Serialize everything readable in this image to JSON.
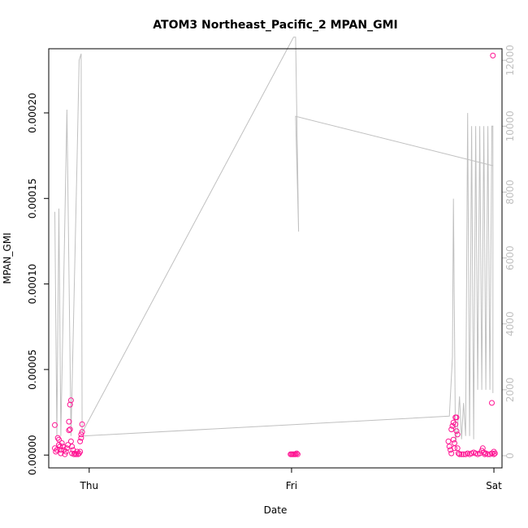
{
  "chart_data": {
    "type": "scatter",
    "title": "ATOM3 Northeast_Pacific_2 MPAN_GMI",
    "xlabel": "Date",
    "ylabel": "MPAN_GMI",
    "x_ticks": [
      "Thu",
      "Fri",
      "Sat"
    ],
    "x_range_days": [
      -0.2,
      2.04
    ],
    "y_ticks": [
      "0.00000",
      "0.00005",
      "0.00010",
      "0.00015",
      "0.00020"
    ],
    "y_tick_values": [
      0.0,
      5e-05,
      0.0001,
      0.00015,
      0.0002
    ],
    "ylim": [
      -7.5e-06,
      0.0002375
    ],
    "y2_ticks": [
      "0",
      "2000",
      "4000",
      "6000",
      "8000",
      "10000",
      "12000"
    ],
    "y2_tick_values": [
      0,
      2000,
      4000,
      6000,
      8000,
      10000,
      12000
    ],
    "y2lim": [
      -370,
      12350
    ],
    "grid": false,
    "colors": {
      "points": "#ff1493",
      "altitude_line": "#c0c0c0",
      "axes": "#000000"
    },
    "series": [
      {
        "type": "scatter",
        "points": [
          [
            -0.17,
            1.75e-05
          ],
          [
            -0.17,
            4e-06
          ],
          [
            -0.165,
            2e-06
          ],
          [
            -0.16,
            3e-06
          ],
          [
            -0.155,
            1e-05
          ],
          [
            -0.15,
            9e-06
          ],
          [
            -0.15,
            6e-06
          ],
          [
            -0.145,
            5e-06
          ],
          [
            -0.14,
            3e-06
          ],
          [
            -0.14,
            1e-06
          ],
          [
            -0.135,
            7e-06
          ],
          [
            -0.13,
            5e-06
          ],
          [
            -0.125,
            3e-06
          ],
          [
            -0.12,
            5e-07
          ],
          [
            -0.115,
            2e-06
          ],
          [
            -0.11,
            4e-06
          ],
          [
            -0.105,
            6e-06
          ],
          [
            -0.1,
            1.45e-05
          ],
          [
            -0.1,
            1.95e-05
          ],
          [
            -0.095,
            1.5e-05
          ],
          [
            -0.095,
            2.95e-05
          ],
          [
            -0.09,
            3.2e-05
          ],
          [
            -0.09,
            8e-06
          ],
          [
            -0.085,
            5e-06
          ],
          [
            -0.085,
            1e-06
          ],
          [
            -0.08,
            3e-06
          ],
          [
            -0.075,
            5e-07
          ],
          [
            -0.07,
            1e-06
          ],
          [
            -0.065,
            5e-07
          ],
          [
            -0.06,
            2e-06
          ],
          [
            -0.055,
            5e-07
          ],
          [
            -0.05,
            1e-06
          ],
          [
            -0.045,
            2e-06
          ],
          [
            -0.045,
            8e-06
          ],
          [
            -0.04,
            1e-05
          ],
          [
            -0.04,
            1.2e-05
          ],
          [
            -0.035,
            1.35e-05
          ],
          [
            -0.035,
            1.8e-05
          ],
          [
            0.995,
            5e-07
          ],
          [
            1.0,
            5e-07
          ],
          [
            1.005,
            5e-07
          ],
          [
            1.01,
            5e-07
          ],
          [
            1.015,
            5e-07
          ],
          [
            1.02,
            5e-07
          ],
          [
            1.025,
            1e-06
          ],
          [
            1.03,
            5e-07
          ],
          [
            1.775,
            8e-06
          ],
          [
            1.78,
            5e-06
          ],
          [
            1.785,
            3e-06
          ],
          [
            1.79,
            1e-06
          ],
          [
            1.79,
            1.5e-05
          ],
          [
            1.795,
            1.7e-05
          ],
          [
            1.8,
            1.9e-05
          ],
          [
            1.8,
            9e-06
          ],
          [
            1.805,
            7e-06
          ],
          [
            1.805,
            4e-06
          ],
          [
            1.81,
            1.8e-05
          ],
          [
            1.81,
            2.2e-05
          ],
          [
            1.815,
            2.2e-05
          ],
          [
            1.815,
            1.4e-05
          ],
          [
            1.82,
            1.2e-05
          ],
          [
            1.82,
            4e-06
          ],
          [
            1.825,
            1e-06
          ],
          [
            1.83,
            5e-07
          ],
          [
            1.84,
            5e-07
          ],
          [
            1.85,
            5e-07
          ],
          [
            1.86,
            5e-07
          ],
          [
            1.87,
            1e-06
          ],
          [
            1.88,
            5e-07
          ],
          [
            1.89,
            1e-06
          ],
          [
            1.9,
            1.5e-06
          ],
          [
            1.91,
            1e-06
          ],
          [
            1.92,
            5e-07
          ],
          [
            1.93,
            1e-06
          ],
          [
            1.94,
            2.5e-06
          ],
          [
            1.945,
            4e-06
          ],
          [
            1.95,
            1.5e-06
          ],
          [
            1.955,
            5e-07
          ],
          [
            1.96,
            1e-06
          ],
          [
            1.97,
            5e-07
          ],
          [
            1.98,
            5e-07
          ],
          [
            1.99,
            1e-06
          ],
          [
            1.99,
            3.05e-05
          ],
          [
            1.995,
            0.0002335
          ],
          [
            2.0,
            2e-06
          ],
          [
            2.0,
            5e-07
          ],
          [
            2.005,
            1e-06
          ]
        ]
      },
      {
        "type": "line",
        "name": "altitude",
        "axis": "right",
        "points": [
          [
            -0.17,
            7400
          ],
          [
            -0.16,
            600
          ],
          [
            -0.15,
            7500
          ],
          [
            -0.14,
            600
          ],
          [
            -0.11,
            10500
          ],
          [
            -0.09,
            600
          ],
          [
            -0.06,
            9000
          ],
          [
            -0.05,
            12000
          ],
          [
            -0.04,
            12200
          ],
          [
            -0.035,
            700
          ],
          [
            1.01,
            12700
          ],
          [
            1.02,
            12700
          ],
          [
            1.035,
            6800
          ],
          [
            1.02,
            10300
          ],
          [
            1.995,
            8800
          ],
          [
            1.995,
            2000
          ],
          [
            1.995,
            1900
          ],
          [
            1.995,
            10000
          ],
          [
            1.99,
            10000
          ],
          [
            1.98,
            2000
          ],
          [
            1.97,
            10000
          ],
          [
            1.96,
            2000
          ],
          [
            1.95,
            10000
          ],
          [
            1.94,
            2000
          ],
          [
            1.93,
            10000
          ],
          [
            1.92,
            2000
          ],
          [
            1.91,
            10000
          ],
          [
            1.9,
            500
          ],
          [
            1.89,
            10000
          ],
          [
            1.88,
            600
          ],
          [
            1.87,
            10400
          ],
          [
            1.86,
            600
          ],
          [
            1.85,
            1600
          ],
          [
            1.84,
            500
          ],
          [
            1.83,
            1800
          ],
          [
            1.82,
            800
          ],
          [
            1.81,
            400
          ],
          [
            1.8,
            7800
          ],
          [
            1.795,
            3000
          ],
          [
            1.78,
            1200
          ],
          [
            -0.03,
            600
          ]
        ]
      }
    ]
  }
}
